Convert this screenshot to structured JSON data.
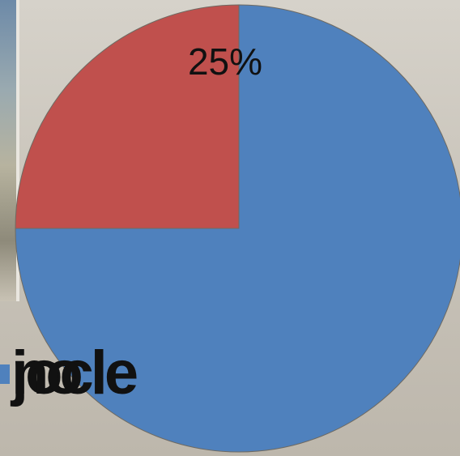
{
  "chart_data": {
    "type": "pie",
    "series": [
      {
        "name": "no",
        "value": 75,
        "color": "#4f81bd"
      },
      {
        "name": "jocle",
        "value": 25,
        "color": "#c0504d"
      }
    ],
    "data_labels": [
      "25%"
    ],
    "legend_position": "bottom-left"
  }
}
